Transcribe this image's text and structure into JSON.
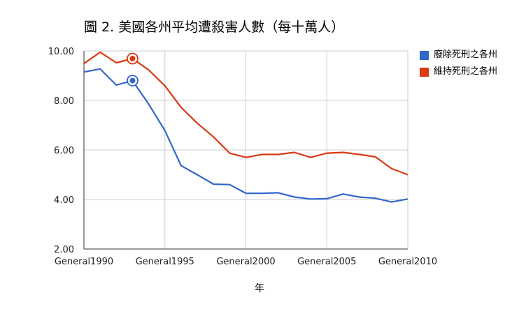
{
  "chart_data": {
    "type": "line",
    "title": "圖 2. 美國各州平均遭殺害人數（每十萬人）",
    "xlabel": "年",
    "ylabel": "",
    "x": [
      1990,
      1991,
      1992,
      1993,
      1994,
      1995,
      1996,
      1997,
      1998,
      1999,
      2000,
      2001,
      2002,
      2003,
      2004,
      2005,
      2006,
      2007,
      2008,
      2009,
      2010
    ],
    "series": [
      {
        "name": "廢除死刑之各州",
        "color": "#3366cc",
        "values": [
          9.15,
          9.27,
          8.62,
          8.8,
          7.85,
          6.78,
          5.37,
          5.0,
          4.62,
          4.6,
          4.25,
          4.25,
          4.27,
          4.1,
          4.02,
          4.03,
          4.22,
          4.1,
          4.05,
          3.9,
          4.02
        ]
      },
      {
        "name": "維持死刑之各州",
        "color": "#dc3912",
        "values": [
          9.49,
          9.95,
          9.52,
          9.69,
          9.23,
          8.59,
          7.72,
          7.08,
          6.53,
          5.87,
          5.7,
          5.82,
          5.82,
          5.9,
          5.7,
          5.87,
          5.9,
          5.82,
          5.72,
          5.25,
          5.0
        ]
      }
    ],
    "highlighted_index": 3,
    "xticks": [
      1990,
      1995,
      2000,
      2005,
      2010
    ],
    "xtick_labels": [
      "General1990",
      "General1995",
      "General2000",
      "General2005",
      "General2010"
    ],
    "yticks": [
      2,
      4,
      6,
      8,
      10
    ],
    "ytick_labels": [
      "2.00",
      "4.00",
      "6.00",
      "8.00",
      "10.00"
    ],
    "ylim": [
      2,
      10
    ],
    "xlim": [
      1990,
      2010
    ],
    "grid": true,
    "legend_position": "right"
  }
}
